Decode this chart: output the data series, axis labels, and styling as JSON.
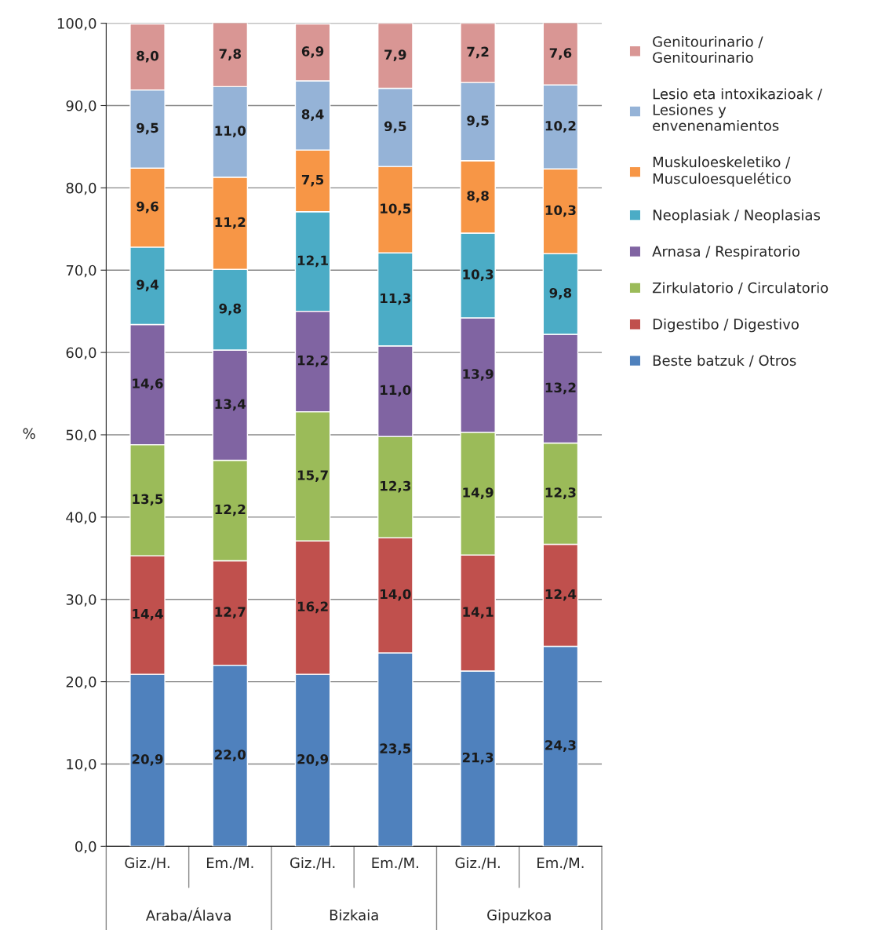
{
  "chart_data": {
    "type": "bar",
    "stacked": true,
    "ylabel": "%",
    "categories": [
      "Giz./H.",
      "Em./M.",
      "Giz./H.",
      "Em./M.",
      "Giz./H.",
      "Em./M."
    ],
    "annotations": [
      "Araba/Álava",
      "Bizkaia",
      "Gipuzkoa"
    ],
    "ylim": [
      0,
      100
    ],
    "yticks": [
      {
        "value": 0,
        "label": "0,0"
      },
      {
        "value": 10,
        "label": "10,0"
      },
      {
        "value": 20,
        "label": "20,0"
      },
      {
        "value": 30,
        "label": "30,0"
      },
      {
        "value": 40,
        "label": "40,0"
      },
      {
        "value": 50,
        "label": "50,0"
      },
      {
        "value": 60,
        "label": "60,0"
      },
      {
        "value": 70,
        "label": "70,0"
      },
      {
        "value": 80,
        "label": "80,0"
      },
      {
        "value": 90,
        "label": "90,0"
      },
      {
        "value": 100,
        "label": "100,0"
      }
    ],
    "grid": "y",
    "legend": "right",
    "series": [
      {
        "name": "Beste batzuk / Otros",
        "color": "#4f81bd",
        "values": [
          20.9,
          22.0,
          20.9,
          23.5,
          21.3,
          24.3
        ],
        "value_labels": [
          "20,9",
          "22,0",
          "20,9",
          "23,5",
          "21,3",
          "24,3"
        ]
      },
      {
        "name": "Digestibo / Digestivo",
        "color": "#c0504d",
        "values": [
          14.4,
          12.7,
          16.2,
          14.0,
          14.1,
          12.4
        ],
        "value_labels": [
          "14,4",
          "12,7",
          "16,2",
          "14,0",
          "14,1",
          "12,4"
        ]
      },
      {
        "name": "Zirkulatorio / Circulatorio",
        "color": "#9bbb59",
        "values": [
          13.5,
          12.2,
          15.7,
          12.3,
          14.9,
          12.3
        ],
        "value_labels": [
          "13,5",
          "12,2",
          "15,7",
          "12,3",
          "14,9",
          "12,3"
        ]
      },
      {
        "name": "Arnasa / Respiratorio",
        "color": "#8064a2",
        "values": [
          14.6,
          13.4,
          12.2,
          11.0,
          13.9,
          13.2
        ],
        "value_labels": [
          "14,6",
          "13,4",
          "12,2",
          "11,0",
          "13,9",
          "13,2"
        ]
      },
      {
        "name": "Neoplasiak / Neoplasias",
        "color": "#4bacc6",
        "values": [
          9.4,
          9.8,
          12.1,
          11.3,
          10.3,
          9.8
        ],
        "value_labels": [
          "9,4",
          "9,8",
          "12,1",
          "11,3",
          "10,3",
          "9,8"
        ]
      },
      {
        "name": "Muskuloeskeletiko /\nMusculoesquelético",
        "color": "#f79646",
        "values": [
          9.6,
          11.2,
          7.5,
          10.5,
          8.8,
          10.3
        ],
        "value_labels": [
          "9,6",
          "11,2",
          "7,5",
          "10,5",
          "8,8",
          "10,3"
        ]
      },
      {
        "name": "Lesio eta intoxikazioak /\nLesiones y\nenvenenamientos",
        "color": "#95b3d7",
        "values": [
          9.5,
          11.0,
          8.4,
          9.5,
          9.5,
          10.2
        ],
        "value_labels": [
          "9,5",
          "11,0",
          "8,4",
          "9,5",
          "9,5",
          "10,2"
        ]
      },
      {
        "name": "Genitourinario /\nGenitourinario",
        "color": "#d99694",
        "values": [
          8.0,
          7.8,
          6.9,
          7.9,
          7.2,
          7.6
        ],
        "value_labels": [
          "8,0",
          "7,8",
          "6,9",
          "7,9",
          "7,2",
          "7,6"
        ]
      }
    ]
  }
}
